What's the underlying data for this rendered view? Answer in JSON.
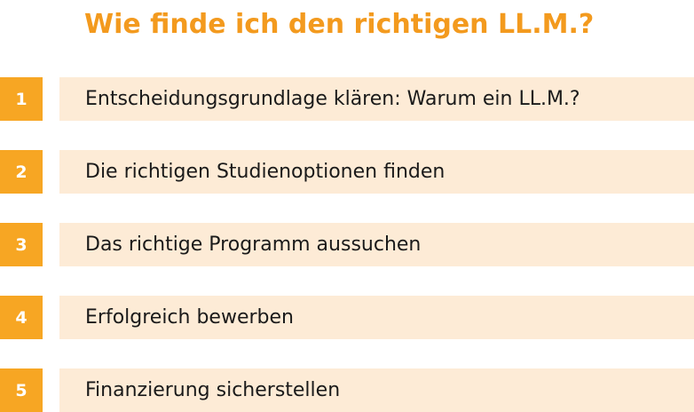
{
  "title": "Wie finde ich den richtigen LL.M.?",
  "steps": [
    {
      "number": "1",
      "label": "Entscheidungsgrundlage klären: Warum ein LL.M.?"
    },
    {
      "number": "2",
      "label": "Die richtigen Studienoptionen finden"
    },
    {
      "number": "3",
      "label": "Das richtige Programm aussuchen"
    },
    {
      "number": "4",
      "label": "Erfolgreich bewerben"
    },
    {
      "number": "5",
      "label": "Finanzierung sicherstellen"
    }
  ],
  "colors": {
    "title": "#f39a1e",
    "number_box": "#f7a623",
    "label_box": "#fdebd6"
  }
}
